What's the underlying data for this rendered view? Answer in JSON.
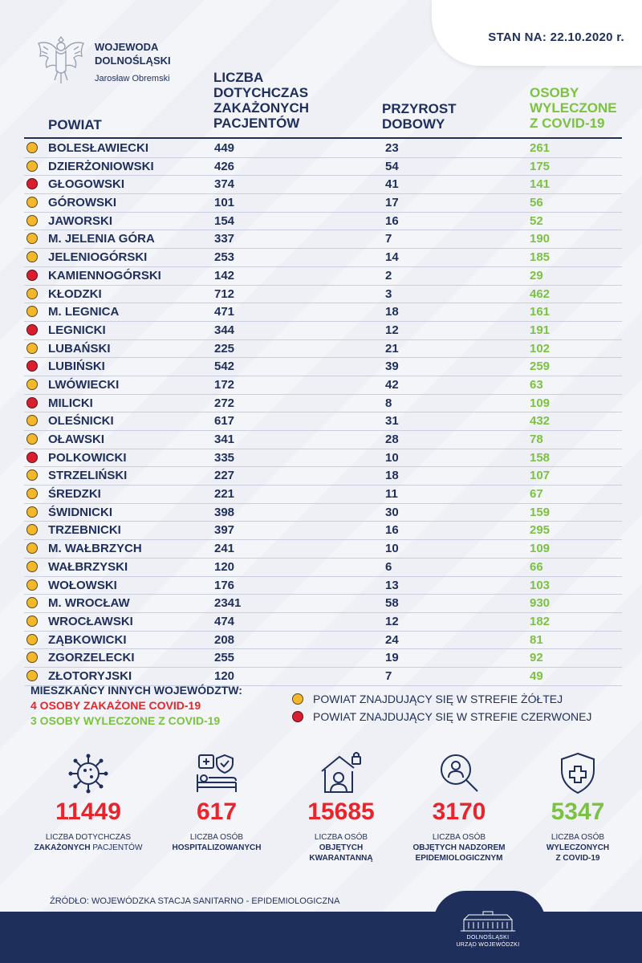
{
  "date": "STAN NA: 22.10.2020 r.",
  "logo": {
    "line1": "WOJEWODA",
    "line2": "DOLNOŚLĄSKI",
    "line3": "Jarosław Obremski"
  },
  "headers": {
    "powiat": "POWIAT",
    "cases": "LICZBA DOTYCHCZAS ZAKAŻONYCH PACJENTÓW",
    "growth": "PRZYROST DOBOWY",
    "recovered": "OSOBY WYLECZONE Z COVID-19"
  },
  "rows": [
    {
      "zone": "yellow",
      "name": "BOLESŁAWIECKI",
      "cases": "449",
      "growth": "23",
      "recovered": "261"
    },
    {
      "zone": "yellow",
      "name": "DZIERŻONIOWSKI",
      "cases": "426",
      "growth": "54",
      "recovered": "175"
    },
    {
      "zone": "red",
      "name": "GŁOGOWSKI",
      "cases": "374",
      "growth": "41",
      "recovered": "141"
    },
    {
      "zone": "yellow",
      "name": "GÓROWSKI",
      "cases": "101",
      "growth": "17",
      "recovered": "56"
    },
    {
      "zone": "yellow",
      "name": "JAWORSKI",
      "cases": "154",
      "growth": "16",
      "recovered": "52"
    },
    {
      "zone": "yellow",
      "name": "M. JELENIA GÓRA",
      "cases": "337",
      "growth": "7",
      "recovered": "190"
    },
    {
      "zone": "yellow",
      "name": "JELENIOGÓRSKI",
      "cases": "253",
      "growth": "14",
      "recovered": "185"
    },
    {
      "zone": "red",
      "name": "KAMIENNOGÓRSKI",
      "cases": "142",
      "growth": "2",
      "recovered": "29"
    },
    {
      "zone": "yellow",
      "name": "KŁODZKI",
      "cases": "712",
      "growth": "3",
      "recovered": "462"
    },
    {
      "zone": "yellow",
      "name": "M. LEGNICA",
      "cases": "471",
      "growth": "18",
      "recovered": "161"
    },
    {
      "zone": "red",
      "name": "LEGNICKI",
      "cases": "344",
      "growth": "12",
      "recovered": "191"
    },
    {
      "zone": "yellow",
      "name": "LUBAŃSKI",
      "cases": "225",
      "growth": "21",
      "recovered": "102"
    },
    {
      "zone": "red",
      "name": "LUBIŃSKI",
      "cases": "542",
      "growth": "39",
      "recovered": "259"
    },
    {
      "zone": "yellow",
      "name": "LWÓWIECKI",
      "cases": "172",
      "growth": "42",
      "recovered": "63"
    },
    {
      "zone": "red",
      "name": "MILICKI",
      "cases": "272",
      "growth": "8",
      "recovered": "109"
    },
    {
      "zone": "yellow",
      "name": "OLEŚNICKI",
      "cases": "617",
      "growth": "31",
      "recovered": "432"
    },
    {
      "zone": "yellow",
      "name": "OŁAWSKI",
      "cases": "341",
      "growth": "28",
      "recovered": "78"
    },
    {
      "zone": "red",
      "name": "POLKOWICKI",
      "cases": "335",
      "growth": "10",
      "recovered": "158"
    },
    {
      "zone": "yellow",
      "name": "STRZELIŃSKI",
      "cases": "227",
      "growth": "18",
      "recovered": "107"
    },
    {
      "zone": "yellow",
      "name": "ŚREDZKI",
      "cases": "221",
      "growth": "11",
      "recovered": "67"
    },
    {
      "zone": "yellow",
      "name": "ŚWIDNICKI",
      "cases": "398",
      "growth": "30",
      "recovered": "159"
    },
    {
      "zone": "yellow",
      "name": "TRZEBNICKI",
      "cases": "397",
      "growth": "16",
      "recovered": "295"
    },
    {
      "zone": "yellow",
      "name": "M. WAŁBRZYCH",
      "cases": "241",
      "growth": "10",
      "recovered": "109"
    },
    {
      "zone": "yellow",
      "name": "WAŁBRZYSKI",
      "cases": "120",
      "growth": "6",
      "recovered": "66"
    },
    {
      "zone": "yellow",
      "name": "WOŁOWSKI",
      "cases": "176",
      "growth": "13",
      "recovered": "103"
    },
    {
      "zone": "yellow",
      "name": "M. WROCŁAW",
      "cases": "2341",
      "growth": "58",
      "recovered": "930"
    },
    {
      "zone": "yellow",
      "name": "WROCŁAWSKI",
      "cases": "474",
      "growth": "12",
      "recovered": "182"
    },
    {
      "zone": "yellow",
      "name": "ZĄBKOWICKI",
      "cases": "208",
      "growth": "24",
      "recovered": "81"
    },
    {
      "zone": "yellow",
      "name": "ZGORZELECKI",
      "cases": "255",
      "growth": "19",
      "recovered": "92"
    },
    {
      "zone": "yellow",
      "name": "ZŁOTORYJSKI",
      "cases": "120",
      "growth": "7",
      "recovered": "49"
    }
  ],
  "other_voivodeships": {
    "title": "MIESZKAŃCY INNYCH WOJEWÓDZTW:",
    "infected": "4 OSOBY ZAKAŻONE COVID-19",
    "recovered": "3 OSOBY WYLECZONE Z COVID-19"
  },
  "legend": {
    "yellow": "POWIAT ZNAJDUJĄCY SIĘ W STREFIE ŻÓŁTEJ",
    "red": "POWIAT ZNAJDUJĄCY SIĘ W STREFIE CZERWONEJ"
  },
  "stats": [
    {
      "icon": "virus-icon",
      "value": "11449",
      "color": "red",
      "label1": "LICZBA DOTYCHCZAS",
      "label2": "ZAKAŻONYCH",
      "label2b": " PACJENTÓW",
      "label3": ""
    },
    {
      "icon": "hospital-bed-icon",
      "value": "617",
      "color": "red",
      "label1": "LICZBA OSÓB",
      "label2": "HOSPITALIZOWANYCH",
      "label2b": "",
      "label3": ""
    },
    {
      "icon": "home-quarantine-icon",
      "value": "15685",
      "color": "red",
      "label1": "LICZBA OSÓB",
      "label2": "OBJĘTYCH",
      "label2b": "",
      "label3": "KWARANTANNĄ"
    },
    {
      "icon": "magnifier-person-icon",
      "value": "3170",
      "color": "red",
      "label1": "LICZBA OSÓB",
      "label2": "OBJĘTYCH NADZOREM",
      "label2b": "",
      "label3": "EPIDEMIOLOGICZNYM"
    },
    {
      "icon": "shield-cross-icon",
      "value": "5347",
      "color": "green",
      "label1": "LICZBA OSÓB",
      "label2": "WYLECZONYCH",
      "label2b": "",
      "label3": "Z COVID-19"
    }
  ],
  "source": "ŹRÓDŁO: WOJEWÓDZKA STACJA SANITARNO - EPIDEMIOLOGICZNA",
  "footer": {
    "line1": "DOLNOŚLĄSKI",
    "line2": "URZĄD WOJEWÓDZKI"
  },
  "colors": {
    "navy": "#1f2f5b",
    "red": "#e8242c",
    "green": "#7cc242",
    "yellow_zone": "#f4b82a",
    "red_zone": "#d91e2e"
  }
}
